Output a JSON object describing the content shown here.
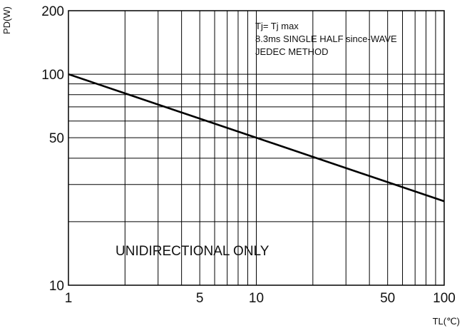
{
  "chart_data": {
    "type": "line",
    "x_scale": "log",
    "y_scale": "log",
    "xlim": [
      1,
      100
    ],
    "ylim": [
      10,
      200
    ],
    "grid": true,
    "xlabel": "TL(℃)",
    "ylabel": "PD(W)",
    "x_tick_labels": [
      {
        "value": 1,
        "label": "1"
      },
      {
        "value": 5,
        "label": "5"
      },
      {
        "value": 10,
        "label": "10"
      },
      {
        "value": 50,
        "label": "50"
      },
      {
        "value": 100,
        "label": "100"
      }
    ],
    "y_tick_labels": [
      {
        "value": 10,
        "label": "10"
      },
      {
        "value": 50,
        "label": "50"
      },
      {
        "value": 100,
        "label": "100"
      },
      {
        "value": 200,
        "label": "200"
      }
    ],
    "x_grid_values": [
      2,
      3,
      4,
      5,
      6,
      7,
      8,
      9,
      10,
      20,
      30,
      40,
      50,
      60,
      70,
      80,
      90
    ],
    "y_grid_values": [
      20,
      30,
      40,
      50,
      60,
      70,
      80,
      90,
      100
    ],
    "series": [
      {
        "color": "#000000",
        "points": [
          {
            "x": 1,
            "y": 100
          },
          {
            "x": 100,
            "y": 25
          }
        ]
      }
    ],
    "annotations": {
      "conditions": [
        "Tj= Tj max",
        "8.3ms SINGLE HALF since-WAVE",
        "JEDEC METHOD"
      ],
      "center_note": "UNIDIRECTIONAL  ONLY"
    }
  }
}
